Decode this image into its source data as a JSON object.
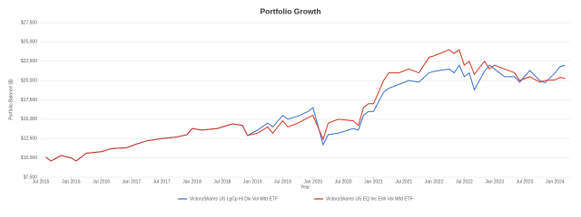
{
  "chart_data": {
    "type": "line",
    "title": "Portfolio Growth",
    "x_label": "Year",
    "y_label": "Portfolio Balance ($)",
    "x": [
      "2015-08",
      "2015-09",
      "2015-11",
      "2016-01",
      "2016-02",
      "2016-04",
      "2016-07",
      "2016-09",
      "2016-12",
      "2017-02",
      "2017-04",
      "2017-07",
      "2017-10",
      "2017-12",
      "2018-01",
      "2018-03",
      "2018-06",
      "2018-09",
      "2018-11",
      "2018-12",
      "2019-02",
      "2019-04",
      "2019-05",
      "2019-07",
      "2019-08",
      "2019-10",
      "2019-12",
      "2020-01",
      "2020-03",
      "2020-04",
      "2020-06",
      "2020-09",
      "2020-10",
      "2020-11",
      "2020-12",
      "2021-01",
      "2021-03",
      "2021-04",
      "2021-06",
      "2021-08",
      "2021-10",
      "2021-12",
      "2022-01",
      "2022-04",
      "2022-05",
      "2022-06",
      "2022-07",
      "2022-08",
      "2022-09",
      "2022-11",
      "2022-12",
      "2023-01",
      "2023-03",
      "2023-05",
      "2023-06",
      "2023-08",
      "2023-10",
      "2023-11",
      "2024-01",
      "2024-02",
      "2024-03"
    ],
    "series": [
      {
        "name": "VictoryShares US LgCp Hi Div Vol Wtd ETF",
        "color": "#3a6cc8",
        "values": [
          10100,
          9600,
          10300,
          10000,
          9600,
          10600,
          10800,
          11200,
          11300,
          11800,
          12200,
          12500,
          12700,
          13000,
          13800,
          13600,
          13800,
          14400,
          14200,
          12900,
          13600,
          14500,
          14000,
          15500,
          15000,
          15400,
          16000,
          16500,
          11700,
          13000,
          13200,
          13800,
          13600,
          15500,
          16000,
          16000,
          18500,
          19000,
          19500,
          20000,
          19800,
          21000,
          21200,
          21500,
          21000,
          22000,
          20500,
          21000,
          18800,
          21200,
          22000,
          21500,
          20500,
          20500,
          19800,
          21300,
          20000,
          19700,
          21000,
          21800,
          22000
        ]
      },
      {
        "name": "VictoryShares US EQ Inc Enh Vol Wtd ETF",
        "color": "#d2321e",
        "values": [
          10100,
          9600,
          10300,
          10000,
          9600,
          10600,
          10800,
          11200,
          11300,
          11800,
          12200,
          12500,
          12700,
          13000,
          13800,
          13600,
          13800,
          14400,
          14200,
          12900,
          13200,
          14000,
          13200,
          14800,
          14000,
          14500,
          15200,
          15500,
          12400,
          14500,
          15000,
          14800,
          14200,
          16500,
          17000,
          17000,
          20000,
          21000,
          21000,
          21500,
          21000,
          23000,
          23200,
          24000,
          23500,
          24000,
          22000,
          22500,
          20800,
          22500,
          21500,
          22000,
          21500,
          21000,
          20000,
          20500,
          19800,
          20000,
          20100,
          20400,
          20300
        ]
      }
    ],
    "xlim": [
      "2015-07",
      "2024-04"
    ],
    "xticks": [
      {
        "value": "2015-07",
        "label": "Jul 2015"
      },
      {
        "value": "2016-01",
        "label": "Jan 2016"
      },
      {
        "value": "2016-07",
        "label": "Jul 2016"
      },
      {
        "value": "2017-01",
        "label": "Jan 2017"
      },
      {
        "value": "2017-07",
        "label": "Jul 2017"
      },
      {
        "value": "2018-01",
        "label": "Jan 2018"
      },
      {
        "value": "2018-07",
        "label": "Jul 2018"
      },
      {
        "value": "2019-01",
        "label": "Jan 2019"
      },
      {
        "value": "2019-07",
        "label": "Jul 2019"
      },
      {
        "value": "2020-01",
        "label": "Jan 2020"
      },
      {
        "value": "2020-07",
        "label": "Jul 2020"
      },
      {
        "value": "2021-01",
        "label": "Jan 2021"
      },
      {
        "value": "2021-07",
        "label": "Jul 2021"
      },
      {
        "value": "2022-01",
        "label": "Jan 2022"
      },
      {
        "value": "2022-07",
        "label": "Jul 2022"
      },
      {
        "value": "2023-01",
        "label": "Jan 2023"
      },
      {
        "value": "2023-07",
        "label": "Jul 2023"
      },
      {
        "value": "2024-01",
        "label": "Jan 2024"
      }
    ],
    "ylim": [
      7500,
      27500
    ],
    "yticks": [
      {
        "value": 7500,
        "label": "$7,500"
      },
      {
        "value": 10000,
        "label": "$10,000"
      },
      {
        "value": 12500,
        "label": "$12,500"
      },
      {
        "value": 15000,
        "label": "$15,000"
      },
      {
        "value": 17500,
        "label": "$17,500"
      },
      {
        "value": 20000,
        "label": "$20,000"
      },
      {
        "value": 22500,
        "label": "$22,500"
      },
      {
        "value": 25000,
        "label": "$25,000"
      },
      {
        "value": 27500,
        "label": "$27,500"
      }
    ],
    "grid": true
  }
}
